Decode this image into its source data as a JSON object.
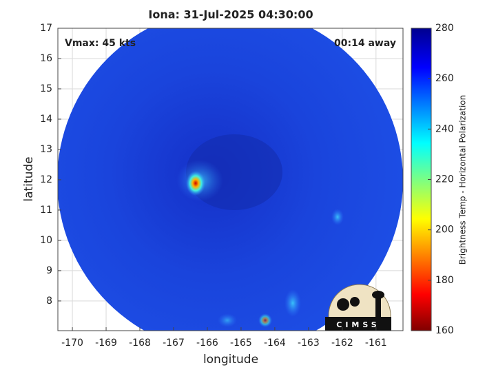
{
  "chart_data": {
    "type": "map",
    "title": "Iona: 31-Jul-2025 04:30:00",
    "annotations": [
      "Vmax: 45 kts",
      "00:14 away"
    ],
    "xlabel": "longitude",
    "ylabel": "latitude",
    "xlim": [
      -170.43,
      -160.2
    ],
    "ylim": [
      7.02,
      17
    ],
    "xticks": [
      -170,
      -169,
      -168,
      -167,
      -166,
      -165,
      -164,
      -163,
      -162,
      -161
    ],
    "yticks": [
      8,
      9,
      10,
      11,
      12,
      13,
      14,
      15,
      16,
      17
    ],
    "grid": true,
    "logo": "CIMSS",
    "colorbar": {
      "label": "Brightness Temp - Horizontal Polarization",
      "lim": [
        160,
        280
      ],
      "ticks": [
        160,
        180,
        200,
        220,
        240,
        260,
        280
      ],
      "colormap": "jet"
    }
  }
}
